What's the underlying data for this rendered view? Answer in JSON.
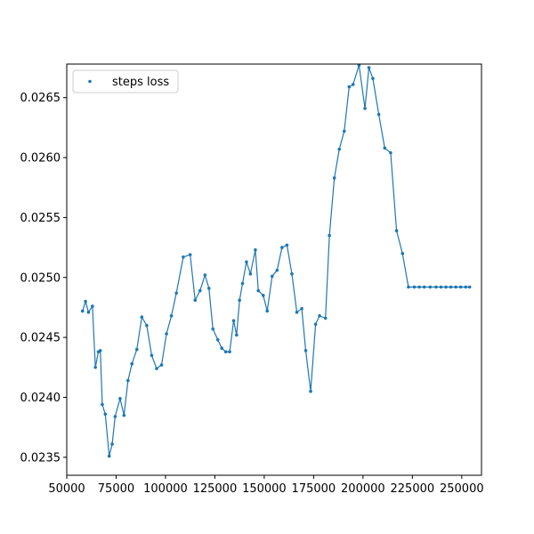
{
  "chart_data": {
    "type": "line",
    "title": "",
    "xlabel": "",
    "ylabel": "",
    "xlim": [
      50000,
      260000
    ],
    "ylim": [
      0.02335,
      0.02678
    ],
    "xticks": [
      50000,
      75000,
      100000,
      125000,
      150000,
      175000,
      200000,
      225000,
      250000
    ],
    "yticks": [
      0.0235,
      0.024,
      0.0245,
      0.025,
      0.0255,
      0.026,
      0.0265
    ],
    "xtick_labels": [
      "50000",
      "75000",
      "100000",
      "125000",
      "150000",
      "175000",
      "200000",
      "225000",
      "250000"
    ],
    "ytick_labels": [
      "0.0235",
      "0.0240",
      "0.0245",
      "0.0250",
      "0.0255",
      "0.0260",
      "0.0265"
    ],
    "grid": false,
    "legend": {
      "position": "upper-left",
      "entries": [
        "steps loss"
      ]
    },
    "color": "#1f77b4",
    "series": [
      {
        "name": "steps loss",
        "x": [
          58000,
          59500,
          61000,
          63000,
          64500,
          66000,
          67000,
          68000,
          69500,
          71500,
          73000,
          74500,
          77000,
          79000,
          81000,
          83000,
          85500,
          88000,
          90500,
          93000,
          95500,
          98000,
          100500,
          103000,
          105500,
          109000,
          112500,
          115000,
          117500,
          120000,
          122000,
          124000,
          126500,
          128500,
          130500,
          132500,
          134500,
          136000,
          137500,
          139000,
          141000,
          143000,
          145500,
          147000,
          149500,
          151500,
          154000,
          156500,
          159000,
          161500,
          164000,
          166500,
          169000,
          171000,
          173500,
          176000,
          178000,
          181000,
          183000,
          185500,
          188000,
          190500,
          193000,
          195000,
          198000,
          201000,
          203000,
          205000,
          208000,
          211000,
          214000,
          217000,
          220000,
          223000,
          226000,
          228500,
          231000,
          234000,
          237000,
          239500,
          242000,
          244500,
          247000,
          249500,
          252000,
          254000
        ],
        "values": [
          0.02472,
          0.0248,
          0.02471,
          0.02476,
          0.02425,
          0.02438,
          0.02439,
          0.02394,
          0.02386,
          0.02351,
          0.02361,
          0.02384,
          0.02399,
          0.02385,
          0.02414,
          0.02428,
          0.0244,
          0.02467,
          0.0246,
          0.02435,
          0.02424,
          0.02427,
          0.02453,
          0.02468,
          0.02487,
          0.02517,
          0.02519,
          0.02481,
          0.02489,
          0.02502,
          0.02491,
          0.02457,
          0.02448,
          0.02441,
          0.02438,
          0.02438,
          0.02464,
          0.02452,
          0.02481,
          0.02495,
          0.02513,
          0.02503,
          0.02523,
          0.02489,
          0.02485,
          0.02472,
          0.02501,
          0.02506,
          0.02525,
          0.02527,
          0.02503,
          0.02471,
          0.02474,
          0.02439,
          0.02405,
          0.02461,
          0.02468,
          0.02466,
          0.02535,
          0.02583,
          0.02607,
          0.02622,
          0.02659,
          0.02661,
          0.02677,
          0.02641,
          0.02675,
          0.02666,
          0.02636,
          0.02608,
          0.02604,
          0.02539,
          0.0252,
          0.02492,
          0.02492,
          0.02492,
          0.02492,
          0.02492,
          0.02492,
          0.02492,
          0.02492,
          0.02492,
          0.02492,
          0.02492,
          0.02492,
          0.02492
        ]
      }
    ]
  }
}
